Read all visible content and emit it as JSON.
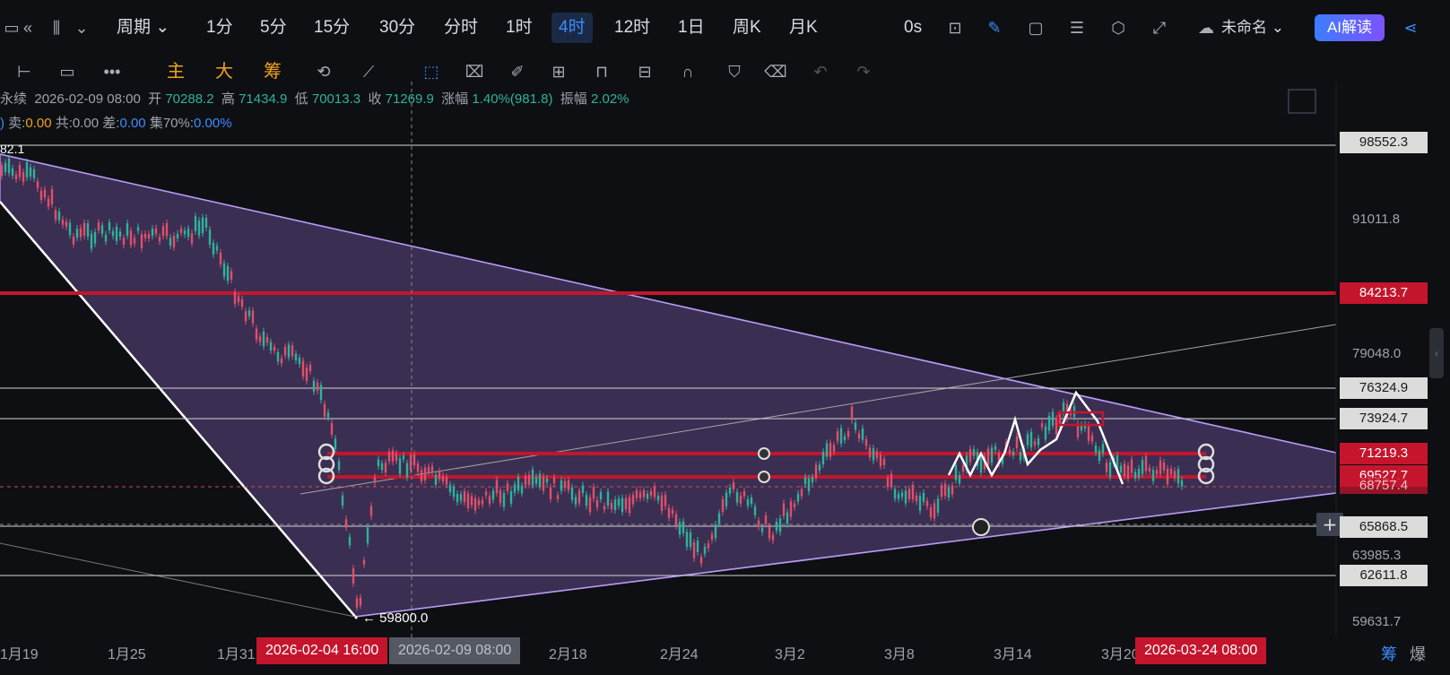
{
  "toolbar": {
    "period_label": "周期",
    "intervals": [
      "1分",
      "5分",
      "15分",
      "30分",
      "分时",
      "1时",
      "4时",
      "12时",
      "1日",
      "周K",
      "月K"
    ],
    "active_interval": "4时",
    "timer": "0s",
    "layout_name": "未命名",
    "ai_label": "AI解读"
  },
  "drawing_toolbar": {
    "main_label": "主",
    "sub_label": "大",
    "chip_label": "筹"
  },
  "info": {
    "prefix": "永续",
    "datetime": "2026-02-09 08:00",
    "open_label": "开",
    "open": "70288.2",
    "high_label": "高",
    "high": "71434.9",
    "low_label": "低",
    "low": "70013.3",
    "close_label": "收",
    "close": "71269.9",
    "change_label": "涨幅",
    "change": "1.40%(981.8)",
    "amp_label": "振幅",
    "amp": "2.02%",
    "sell_label": "卖:",
    "sell": "0.00",
    "total_label": "共:",
    "total": "0.00",
    "diff_label": "差:",
    "diff": "0.00",
    "conc_label": "集70%:",
    "conc": "0.00%"
  },
  "chart_data": {
    "type": "candlestick",
    "price_axis_labels": [
      "98552.3",
      "91011.8",
      "84213.7",
      "79048.0",
      "76324.9",
      "73924.7",
      "71219.3",
      "69527.7",
      "68757.4",
      "65868.5",
      "63985.3",
      "62611.8",
      "59631.7"
    ],
    "highlighted_levels": {
      "red": [
        "84213.7",
        "71219.3",
        "69527.7"
      ],
      "white": [
        "98552.3",
        "76324.9",
        "73924.7",
        "65868.5",
        "62611.8"
      ]
    },
    "date_labels": [
      "1月19",
      "1月25",
      "1月31",
      "2月18",
      "2月24",
      "3月2",
      "3月8",
      "3月14",
      "3月20"
    ],
    "crosshair_date": "2026-02-09 08:00",
    "badge_start": "2026-02-04 16:00",
    "badge_end": "2026-03-24 08:00",
    "low_marker": "← 59800.0",
    "high_marker_partial": "82.1"
  },
  "bottom_right": {
    "chip": "筹",
    "burst": "爆"
  }
}
